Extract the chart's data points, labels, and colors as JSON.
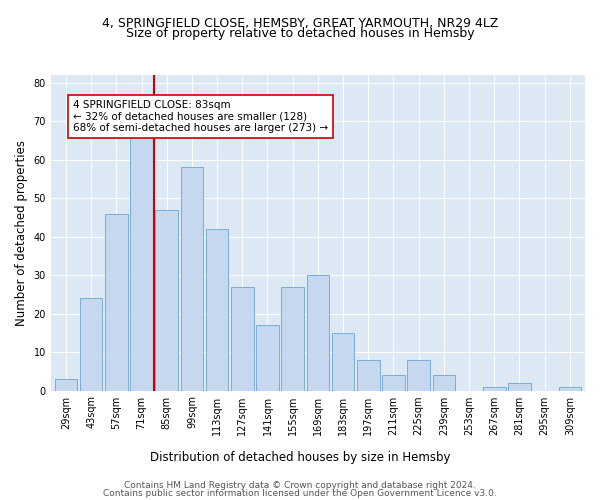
{
  "title_line1": "4, SPRINGFIELD CLOSE, HEMSBY, GREAT YARMOUTH, NR29 4LZ",
  "title_line2": "Size of property relative to detached houses in Hemsby",
  "xlabel": "Distribution of detached houses by size in Hemsby",
  "ylabel": "Number of detached properties",
  "categories": [
    "29sqm",
    "43sqm",
    "57sqm",
    "71sqm",
    "85sqm",
    "99sqm",
    "113sqm",
    "127sqm",
    "141sqm",
    "155sqm",
    "169sqm",
    "183sqm",
    "197sqm",
    "211sqm",
    "225sqm",
    "239sqm",
    "253sqm",
    "267sqm",
    "281sqm",
    "295sqm",
    "309sqm"
  ],
  "values": [
    3,
    24,
    46,
    67,
    47,
    58,
    42,
    27,
    17,
    27,
    30,
    15,
    8,
    4,
    8,
    4,
    0,
    1,
    2,
    0,
    1
  ],
  "bar_color": "#c5d8f0",
  "bar_edgecolor": "#7aadda",
  "vline_color": "#cc0000",
  "annotation_text": "4 SPRINGFIELD CLOSE: 83sqm\n← 32% of detached houses are smaller (128)\n68% of semi-detached houses are larger (273) →",
  "annotation_box_edgecolor": "#cc0000",
  "annotation_box_facecolor": "white",
  "ylim": [
    0,
    82
  ],
  "yticks": [
    0,
    10,
    20,
    30,
    40,
    50,
    60,
    70,
    80
  ],
  "plot_background": "#dce9f5",
  "figure_background": "#ffffff",
  "title_fontsize": 9,
  "subtitle_fontsize": 9,
  "axis_label_fontsize": 8.5,
  "tick_fontsize": 7,
  "annotation_fontsize": 7.5,
  "footer_fontsize": 6.5,
  "footer_line1": "Contains HM Land Registry data © Crown copyright and database right 2024.",
  "footer_line2": "Contains public sector information licensed under the Open Government Licence v3.0."
}
